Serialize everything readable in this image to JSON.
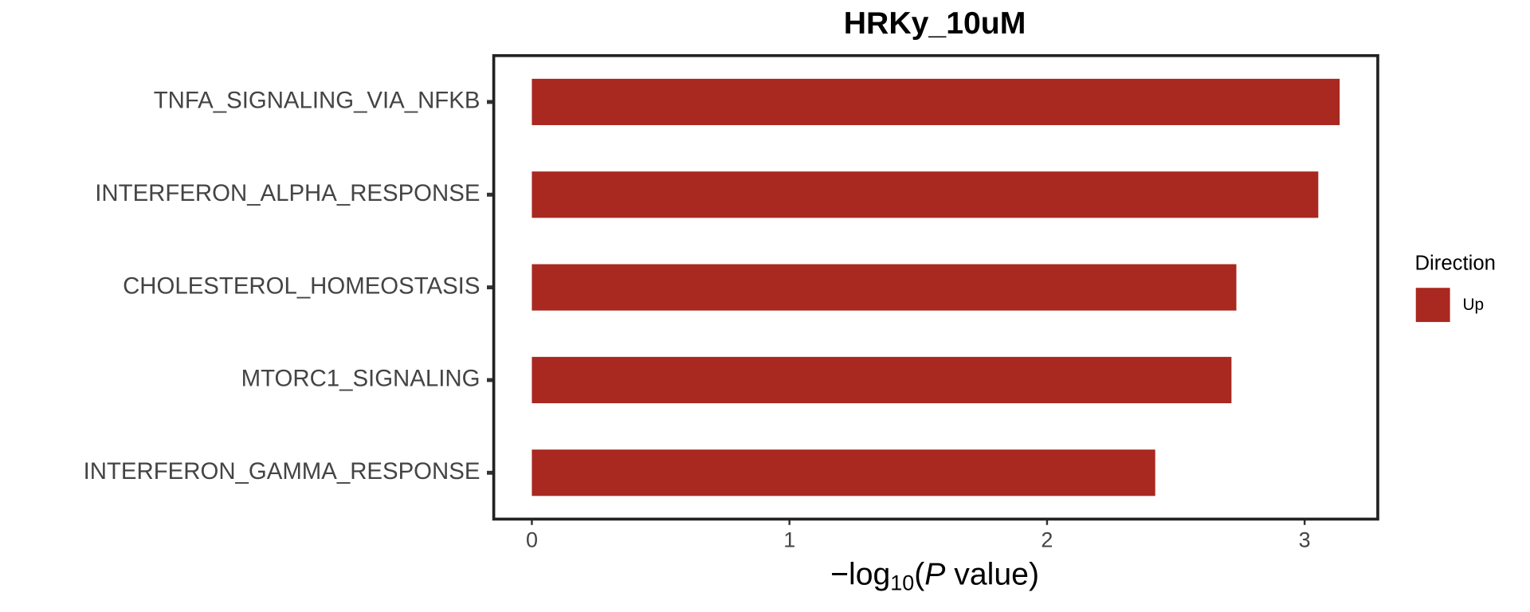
{
  "chart_data": {
    "type": "bar",
    "orientation": "horizontal",
    "title": "HRKy_10uM",
    "categories": [
      "TNFA_SIGNALING_VIA_NFKB",
      "INTERFERON_ALPHA_RESPONSE",
      "CHOLESTEROL_HOMEOSTASIS",
      "MTORC1_SIGNALING",
      "INTERFERON_GAMMA_RESPONSE"
    ],
    "series": [
      {
        "name": "Up",
        "color": "#a92820",
        "values": [
          3.136,
          3.053,
          2.735,
          2.716,
          2.42
        ]
      }
    ],
    "legend_title": "Direction",
    "x_label": {
      "minus": "−",
      "log": "log",
      "base": "10",
      "open": "(",
      "var": "P",
      "rest": " value)"
    },
    "xlim": [
      -0.148,
      3.284
    ],
    "xticks": [
      0,
      1,
      2,
      3
    ],
    "grid": false,
    "legend": "right"
  }
}
